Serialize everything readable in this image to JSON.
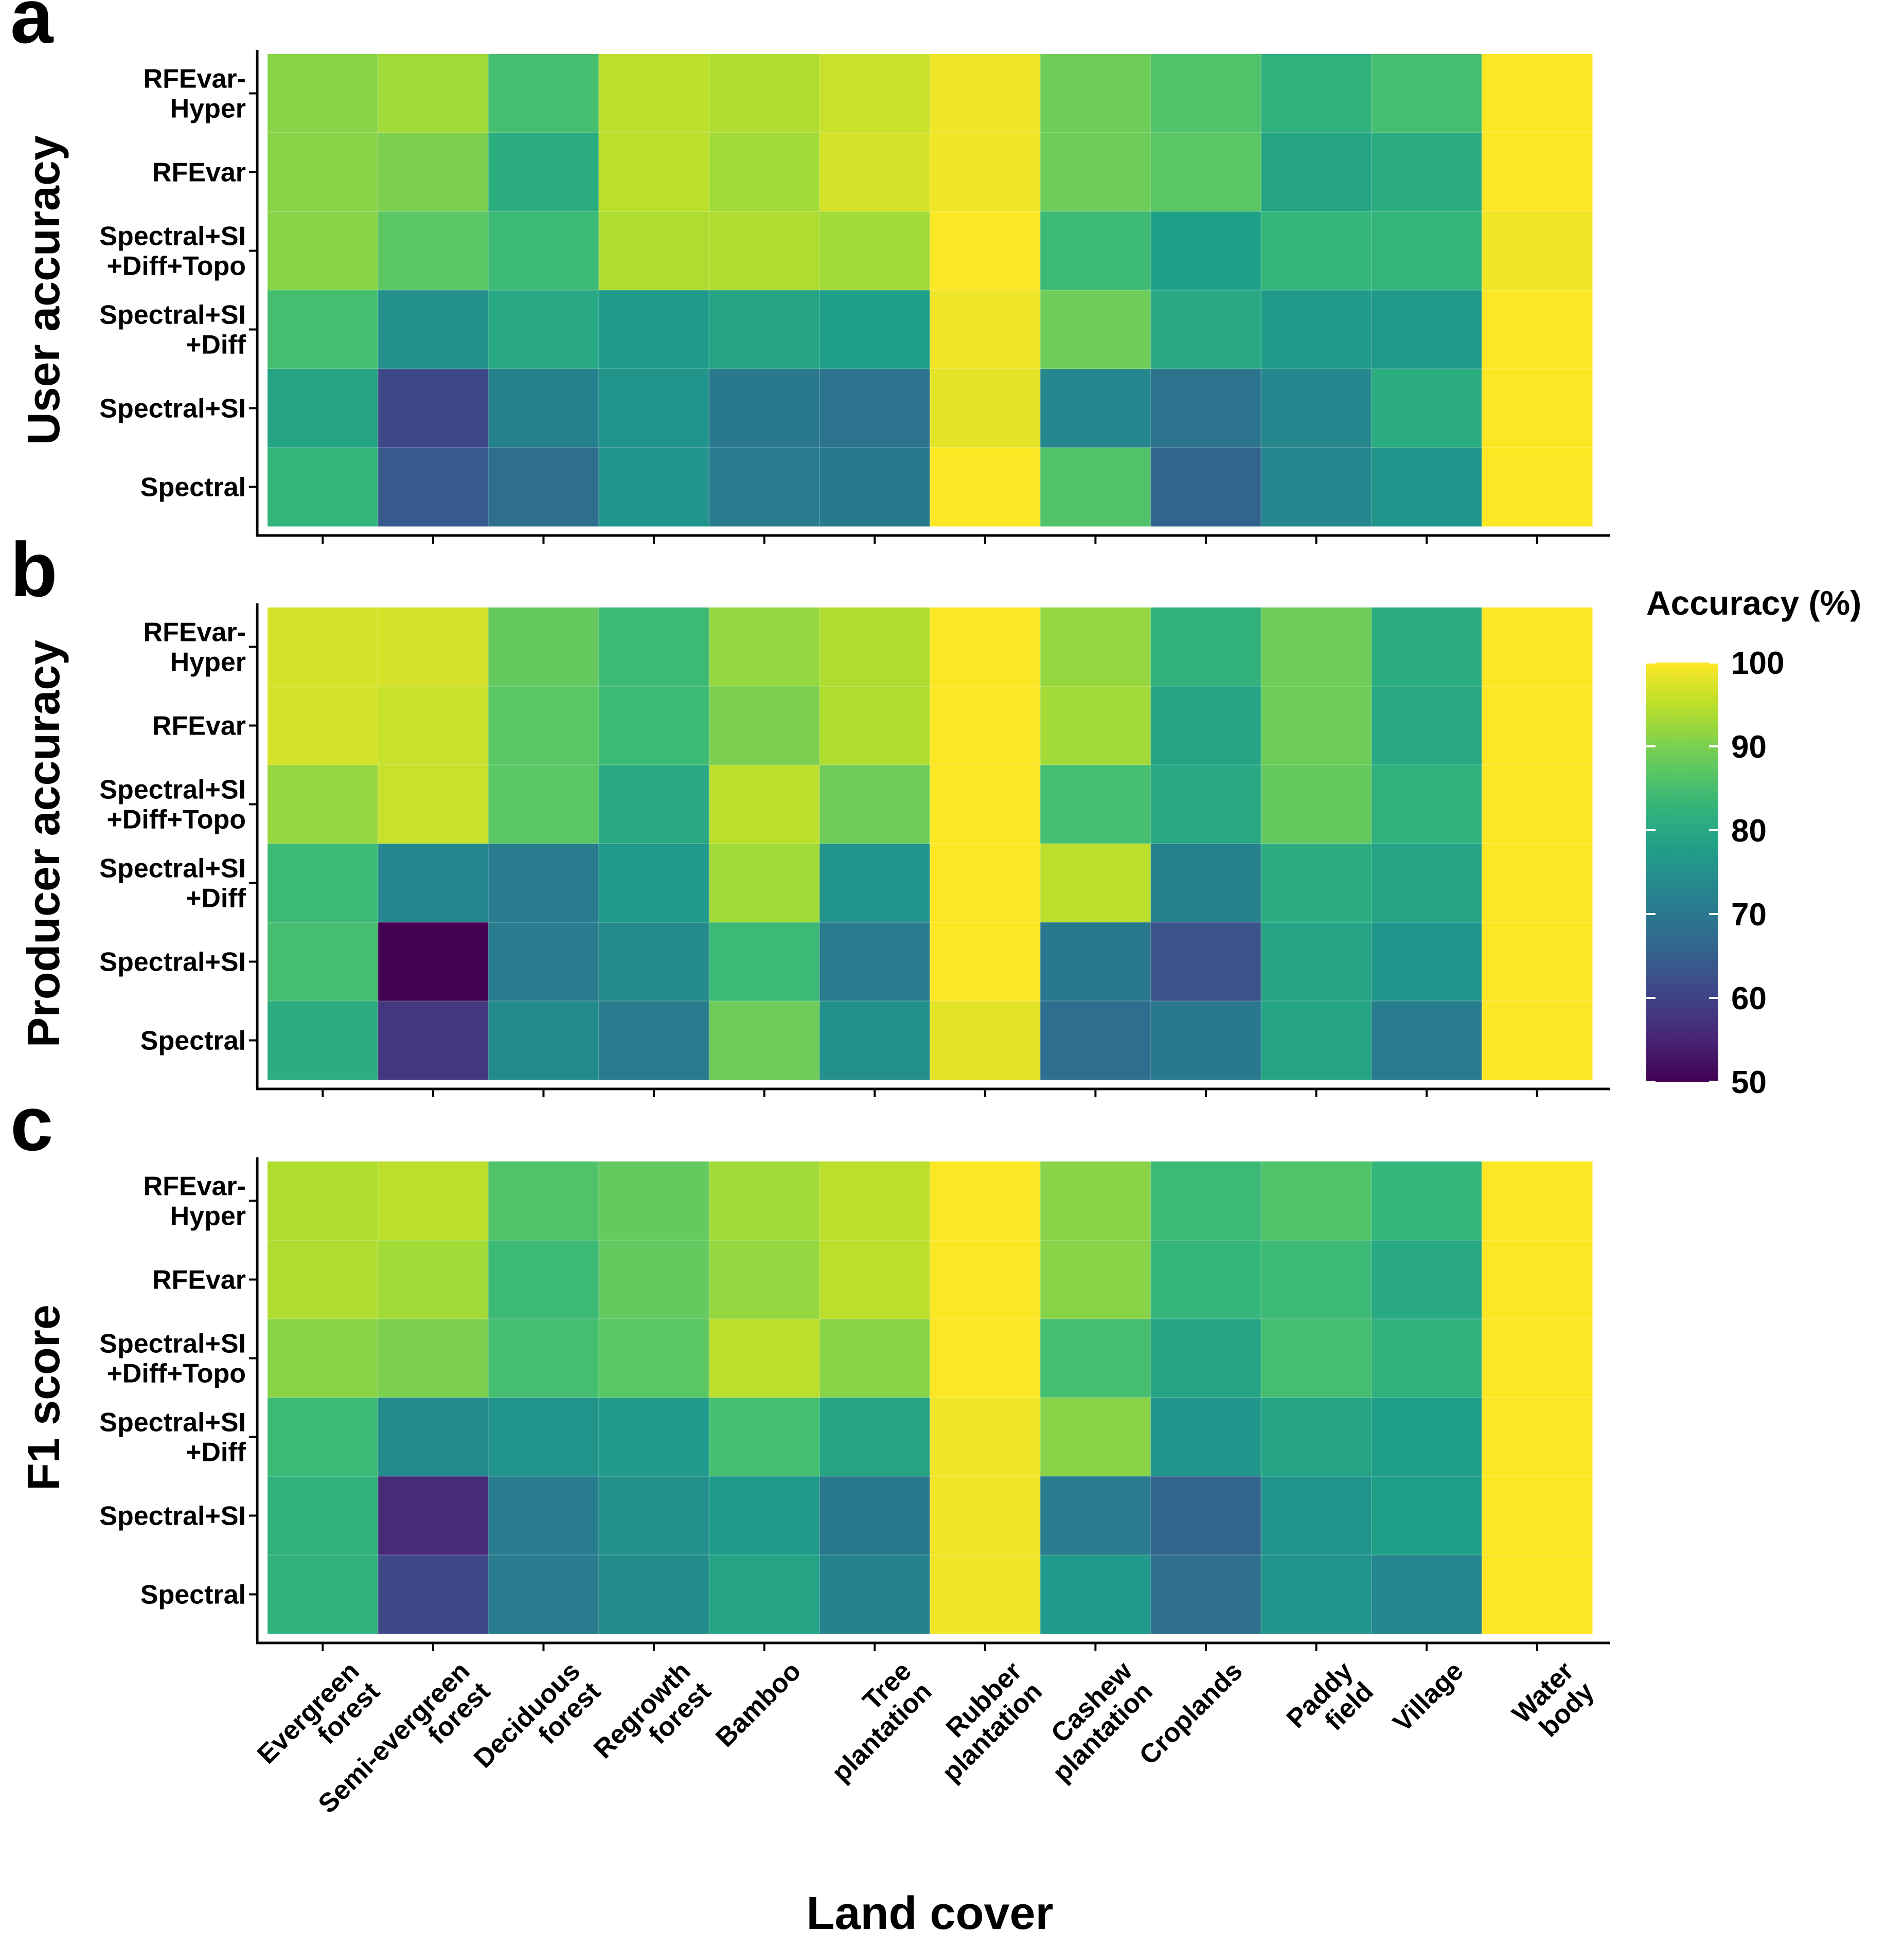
{
  "chart_data": {
    "type": "heatmap",
    "x_categories": [
      [
        "Evergreen",
        "forest"
      ],
      [
        "Semi-evergreen",
        "forest"
      ],
      [
        "Deciduous",
        "forest"
      ],
      [
        "Regrowth",
        "forest"
      ],
      [
        "Bamboo"
      ],
      [
        "Tree",
        "plantation"
      ],
      [
        "Rubber",
        "plantation"
      ],
      [
        "Cashew",
        "plantation"
      ],
      [
        "Croplands"
      ],
      [
        "Paddy",
        "field"
      ],
      [
        "Village"
      ],
      [
        "Water",
        "body"
      ]
    ],
    "y_categories": [
      [
        "RFEvar-",
        "Hyper"
      ],
      [
        "RFEvar"
      ],
      [
        "Spectral+SI",
        "+Diff+Topo"
      ],
      [
        "Spectral+SI",
        "+Diff"
      ],
      [
        "Spectral+SI"
      ],
      [
        "Spectral"
      ]
    ],
    "xlabel": "Land cover",
    "colorbar": {
      "title": "Accuracy (%)",
      "min": 50,
      "max": 100,
      "ticks": [
        100,
        90,
        80,
        70,
        60,
        50
      ]
    },
    "panels": [
      {
        "letter": "a",
        "ylabel": "User accuracy",
        "values": [
          [
            91,
            93,
            85,
            95,
            94,
            96,
            99,
            89,
            86,
            82,
            85,
            100
          ],
          [
            91,
            90,
            81,
            95,
            93,
            97,
            99,
            89,
            87,
            79,
            81,
            100
          ],
          [
            91,
            87,
            84,
            94,
            94,
            93,
            100,
            84,
            78,
            83,
            83,
            99
          ],
          [
            85,
            75,
            80,
            77,
            79,
            78,
            99,
            89,
            80,
            77,
            77,
            100
          ],
          [
            79,
            61,
            72,
            76,
            70,
            69,
            98,
            73,
            69,
            73,
            81,
            100
          ],
          [
            83,
            64,
            68,
            76,
            71,
            70,
            100,
            86,
            66,
            73,
            76,
            100
          ]
        ]
      },
      {
        "letter": "b",
        "ylabel": "Producer accuracy",
        "values": [
          [
            97,
            97,
            88,
            84,
            92,
            94,
            100,
            92,
            82,
            89,
            81,
            100
          ],
          [
            97,
            96,
            87,
            84,
            90,
            94,
            100,
            93,
            79,
            89,
            80,
            100
          ],
          [
            92,
            96,
            87,
            80,
            95,
            89,
            100,
            85,
            80,
            88,
            82,
            100
          ],
          [
            84,
            73,
            71,
            77,
            93,
            76,
            100,
            95,
            72,
            81,
            79,
            100
          ],
          [
            85,
            50,
            71,
            74,
            84,
            71,
            100,
            70,
            63,
            79,
            76,
            100
          ],
          [
            81,
            58,
            74,
            71,
            89,
            75,
            98,
            68,
            70,
            79,
            71,
            100
          ]
        ]
      },
      {
        "letter": "c",
        "ylabel": "F1 score",
        "values": [
          [
            94,
            95,
            86,
            88,
            93,
            95,
            100,
            91,
            84,
            86,
            83,
            100
          ],
          [
            94,
            93,
            84,
            88,
            92,
            95,
            100,
            91,
            83,
            84,
            80,
            100
          ],
          [
            91,
            90,
            85,
            87,
            95,
            91,
            100,
            85,
            79,
            85,
            82,
            100
          ],
          [
            84,
            74,
            76,
            77,
            85,
            79,
            99,
            91,
            76,
            79,
            78,
            100
          ],
          [
            82,
            56,
            71,
            75,
            77,
            70,
            99,
            71,
            66,
            76,
            78,
            100
          ],
          [
            82,
            61,
            71,
            74,
            79,
            72,
            99,
            77,
            68,
            76,
            73,
            100
          ]
        ]
      }
    ]
  }
}
